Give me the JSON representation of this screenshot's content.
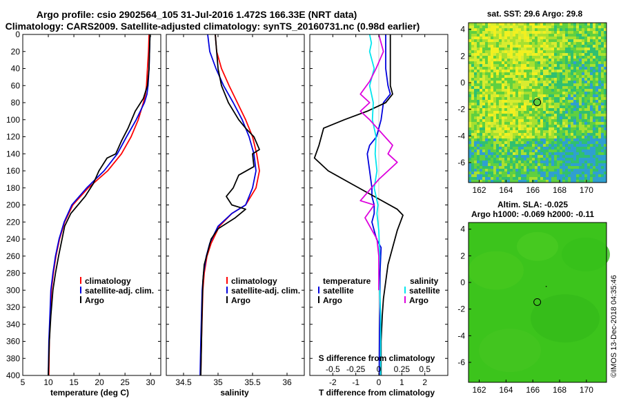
{
  "title_line1": "Argo profile: csio 2902564_105 31-Jul-2016 1.472S 166.33E (NRT data)",
  "title_line2": "Climatology: CARS2009. Satellite-adjusted climatology: synTS_20160731.nc (0.98d earlier)",
  "watermark": "©IMOS 13-Dec-2018 04:35:46",
  "colors": {
    "climatology": "#ff0000",
    "satellite": "#0000dd",
    "argo": "#000000",
    "salinity_sat": "#00e5ee",
    "salinity_diff": "#dd00dd"
  },
  "depth_ticks": [
    "0",
    "20",
    "40",
    "60",
    "80",
    "100",
    "120",
    "140",
    "160",
    "180",
    "200",
    "220",
    "240",
    "260",
    "280",
    "300",
    "320",
    "340",
    "360",
    "380",
    "400"
  ],
  "chart_data": [
    {
      "type": "line",
      "title": "",
      "xlabel": "temperature (deg C)",
      "ylabel": "",
      "xlim": [
        5,
        32
      ],
      "ylim": [
        400,
        0
      ],
      "xticks": [
        "5",
        "10",
        "15",
        "20",
        "25",
        "30"
      ],
      "xtick_values": [
        5,
        10,
        15,
        20,
        25,
        30
      ],
      "legend": [
        "climatology",
        "satellite-adj. clim.",
        "Argo"
      ],
      "series": [
        {
          "name": "climatology",
          "color": "#ff0000",
          "x": [
            29.7,
            29.6,
            29.4,
            29.2,
            29.0,
            28.6,
            27.6,
            26.2,
            24.3,
            21.6,
            17.8,
            14.8,
            13.2,
            12.2,
            11.5,
            11.0,
            10.6,
            10.4,
            10.2,
            10.1
          ],
          "y": [
            0,
            20,
            40,
            60,
            70,
            80,
            100,
            120,
            140,
            160,
            180,
            200,
            220,
            240,
            260,
            280,
            300,
            330,
            360,
            400
          ]
        },
        {
          "name": "satellite-adj. clim.",
          "color": "#0000dd",
          "x": [
            29.9,
            29.8,
            29.7,
            29.5,
            29.3,
            28.8,
            27.2,
            25.3,
            23.5,
            20.9,
            17.5,
            14.6,
            13.1,
            12.1,
            11.4,
            10.9,
            10.5,
            10.3,
            10.1,
            10.0
          ],
          "y": [
            0,
            20,
            40,
            60,
            70,
            80,
            100,
            120,
            140,
            160,
            180,
            200,
            220,
            240,
            260,
            280,
            300,
            330,
            360,
            400
          ]
        },
        {
          "name": "Argo",
          "color": "#000000",
          "x": [
            29.9,
            29.8,
            29.7,
            29.4,
            28.6,
            27.0,
            25.6,
            24.3,
            23.2,
            21.5,
            19.9,
            18.8,
            17.2,
            15.8,
            14.4,
            13.2,
            12.0,
            11.4,
            10.9,
            10.5,
            10.2,
            10.0
          ],
          "y": [
            0,
            20,
            40,
            60,
            75,
            90,
            110,
            125,
            140,
            145,
            160,
            175,
            190,
            200,
            210,
            225,
            260,
            280,
            300,
            330,
            360,
            400
          ]
        }
      ]
    },
    {
      "type": "line",
      "xlabel": "salinity",
      "ylabel": "",
      "xlim": [
        34.25,
        36.25
      ],
      "ylim": [
        400,
        0
      ],
      "xticks": [
        "34.5",
        "35",
        "35.5",
        "36"
      ],
      "xtick_values": [
        34.5,
        35.0,
        35.5,
        36.0
      ],
      "legend": [
        "climatology",
        "satellite-adj. clim.",
        "Argo"
      ],
      "series": [
        {
          "name": "climatology",
          "color": "#ff0000",
          "x": [
            34.96,
            34.98,
            35.05,
            35.16,
            35.28,
            35.4,
            35.5,
            35.56,
            35.6,
            35.55,
            35.4,
            35.2,
            35.02,
            34.9,
            34.84,
            34.8,
            34.78,
            34.77,
            34.76,
            34.75
          ],
          "y": [
            0,
            20,
            40,
            60,
            80,
            100,
            120,
            140,
            160,
            180,
            200,
            210,
            225,
            245,
            260,
            280,
            300,
            330,
            360,
            400
          ]
        },
        {
          "name": "satellite-adj. clim.",
          "color": "#0000dd",
          "x": [
            34.85,
            34.88,
            34.97,
            35.08,
            35.22,
            35.35,
            35.45,
            35.52,
            35.55,
            35.5,
            35.4,
            35.2,
            35.0,
            34.88,
            34.83,
            34.79,
            34.77,
            34.76,
            34.75,
            34.74
          ],
          "y": [
            0,
            20,
            40,
            60,
            80,
            100,
            120,
            140,
            160,
            180,
            200,
            210,
            225,
            245,
            260,
            280,
            300,
            330,
            360,
            400
          ]
        },
        {
          "name": "Argo",
          "color": "#000000",
          "x": [
            34.96,
            34.98,
            35.0,
            35.05,
            35.15,
            35.3,
            35.4,
            35.52,
            35.6,
            35.5,
            35.52,
            35.3,
            35.22,
            35.12,
            35.2,
            35.4,
            35.25,
            35.0,
            34.9,
            34.85,
            34.8,
            34.78,
            34.77,
            34.76,
            34.75
          ],
          "y": [
            0,
            20,
            40,
            60,
            80,
            100,
            110,
            120,
            135,
            140,
            155,
            165,
            180,
            190,
            200,
            205,
            215,
            228,
            240,
            255,
            270,
            290,
            320,
            360,
            400
          ]
        }
      ]
    },
    {
      "type": "line",
      "xlabel": "T difference from climatology",
      "xlabel_top": "S difference from climatology",
      "ylabel": "",
      "xlim": [
        -3,
        3
      ],
      "ylim": [
        400,
        0
      ],
      "xticks": [
        "-2",
        "-1",
        "0",
        "1",
        "2"
      ],
      "xtick_values": [
        -2,
        -1,
        0,
        1,
        2
      ],
      "sxticks": [
        "-0.5",
        "-0.25",
        "0",
        "0.25",
        "0.5"
      ],
      "sxtick_values": [
        -0.5,
        -0.25,
        0,
        0.25,
        0.5
      ],
      "legend_temperature": [
        "temperature",
        "satellite",
        "Argo"
      ],
      "legend_salinity": [
        "salinity",
        "satellite",
        "Argo"
      ],
      "series": [
        {
          "name": "temperature satellite",
          "color": "#0000dd",
          "x": [
            0.3,
            0.3,
            0.3,
            0.4,
            0.5,
            0.2,
            0.1,
            -0.1,
            -0.4,
            -0.5,
            -0.4,
            -0.3,
            -0.3,
            -0.2,
            -0.2,
            -0.3,
            -0.2,
            -0.1,
            0.1,
            0.05,
            0.05,
            0.05,
            0.03,
            0.02,
            0.02
          ],
          "y": [
            0,
            20,
            40,
            60,
            70,
            80,
            100,
            120,
            130,
            140,
            160,
            180,
            190,
            200,
            210,
            220,
            230,
            240,
            250,
            280,
            300,
            320,
            350,
            380,
            400
          ]
        },
        {
          "name": "temperature Argo",
          "color": "#000000",
          "x": [
            0.5,
            0.5,
            0.5,
            0.5,
            0.6,
            0.3,
            -0.5,
            -1.5,
            -2.4,
            -2.6,
            -2.8,
            -2.2,
            -1.2,
            -0.2,
            0.8,
            1.05,
            0.8,
            0.6,
            0.4,
            0.3,
            0.2,
            0.15,
            0.1,
            0.1
          ],
          "y": [
            0,
            20,
            40,
            60,
            70,
            80,
            90,
            100,
            110,
            130,
            145,
            160,
            175,
            190,
            205,
            212,
            230,
            250,
            270,
            290,
            310,
            330,
            360,
            400
          ]
        },
        {
          "name": "salinity satellite",
          "color": "#00e5ee",
          "x": [
            -0.1,
            -0.08,
            -0.1,
            -0.05,
            -0.1,
            -0.06,
            -0.07,
            -0.03,
            -0.04,
            -0.02,
            -0.05,
            -0.01,
            -0.02,
            0.0,
            0.01,
            0.0,
            0.01,
            0.02,
            0.02,
            0.02,
            0.02
          ],
          "y": [
            0,
            10,
            20,
            40,
            60,
            80,
            100,
            120,
            140,
            160,
            180,
            200,
            210,
            230,
            260,
            280,
            300,
            330,
            360,
            380,
            400
          ]
        },
        {
          "name": "salinity Argo",
          "color": "#dd00dd",
          "x": [
            0.0,
            0.05,
            -0.03,
            -0.1,
            -0.2,
            -0.1,
            -0.2,
            -0.1,
            0.15,
            0.1,
            0.2,
            0.0,
            -0.2,
            -0.05,
            -0.15,
            -0.02,
            0.0,
            0.0
          ],
          "y": [
            0,
            20,
            40,
            55,
            70,
            80,
            90,
            100,
            130,
            140,
            150,
            170,
            195,
            200,
            215,
            240,
            260,
            300
          ]
        }
      ]
    }
  ],
  "map_sst": {
    "title": "sat. SST: 29.6 Argo: 29.8",
    "xticks": [
      "162",
      "164",
      "166",
      "168",
      "170"
    ],
    "xtick_values": [
      162,
      164,
      166,
      168,
      170
    ],
    "yticks": [
      "4",
      "2",
      "0",
      "-2",
      "-4",
      "-6"
    ],
    "ytick_values": [
      4,
      2,
      0,
      -2,
      -4,
      -6
    ],
    "xlim": [
      161.2,
      171.5
    ],
    "ylim": [
      -7.5,
      4.5
    ],
    "marker": [
      166.33,
      -1.472
    ]
  },
  "map_sla": {
    "title_line1": "Altim. SLA: -0.025",
    "title_line2": "Argo h1000: -0.069 h2000: -0.11",
    "xticks": [
      "162",
      "164",
      "166",
      "168",
      "170"
    ],
    "xtick_values": [
      162,
      164,
      166,
      168,
      170
    ],
    "yticks": [
      "4",
      "2",
      "0",
      "-2",
      "-4",
      "-6"
    ],
    "ytick_values": [
      4,
      2,
      0,
      -2,
      -4,
      -6
    ],
    "xlim": [
      161.2,
      171.5
    ],
    "ylim": [
      -7.5,
      4.5
    ],
    "marker": [
      166.33,
      -1.472
    ]
  }
}
